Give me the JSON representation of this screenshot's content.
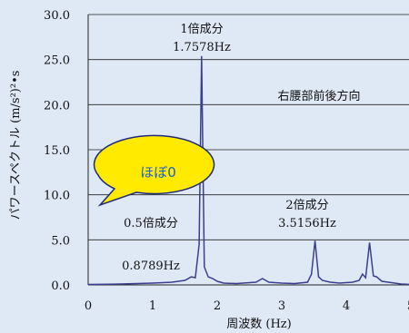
{
  "chart_data": {
    "type": "line",
    "xlabel": "周波数 (Hz)",
    "ylabel": "パワースペクトル (m/s²)²•s",
    "x_ticks": [
      "0",
      "1",
      "2",
      "3",
      "4",
      "5"
    ],
    "y_ticks": [
      "0.0",
      "5.0",
      "10.0",
      "15.0",
      "20.0",
      "25.0",
      "30.0"
    ],
    "xlim": [
      0,
      5
    ],
    "ylim": [
      0,
      30
    ],
    "grid": "horizontal",
    "series": [
      {
        "color": "#3a3f8f",
        "x": [
          0.0,
          0.5,
          1.0,
          1.3,
          1.5,
          1.6,
          1.66,
          1.72,
          1.758,
          1.8,
          1.86,
          1.93,
          2.0,
          2.1,
          2.3,
          2.6,
          2.7,
          2.8,
          3.0,
          3.2,
          3.4,
          3.46,
          3.5156,
          3.57,
          3.63,
          3.75,
          3.9,
          4.1,
          4.2,
          4.25,
          4.3,
          4.36,
          4.42,
          4.47,
          4.55,
          4.65,
          4.75,
          4.85,
          5.0
        ],
        "y": [
          0.05,
          0.1,
          0.2,
          0.3,
          0.5,
          0.9,
          0.8,
          4.5,
          25.4,
          2.0,
          0.9,
          0.7,
          0.4,
          0.2,
          0.15,
          0.3,
          0.7,
          0.3,
          0.2,
          0.15,
          0.3,
          1.2,
          4.9,
          0.9,
          0.5,
          0.3,
          0.2,
          0.3,
          0.5,
          1.2,
          0.8,
          4.7,
          1.0,
          0.9,
          0.4,
          0.3,
          0.2,
          0.1,
          0.05
        ]
      }
    ],
    "annotations": {
      "peak1_name": "1倍成分",
      "peak1_freq": "1.7578Hz",
      "peak2_name": "2倍成分",
      "peak2_freq": "3.5156Hz",
      "half_name": "0.5倍成分",
      "half_freq": "0.8789Hz",
      "direction": "右腰部前後方向",
      "bubble": "ほぼ0"
    }
  },
  "colors": {
    "background": "#dfe9f6",
    "line": "#3a3f8f",
    "bubble_fill": "#ffea00",
    "bubble_stroke": "#1f2a7a",
    "bubble_text": "#1a5fd6"
  }
}
